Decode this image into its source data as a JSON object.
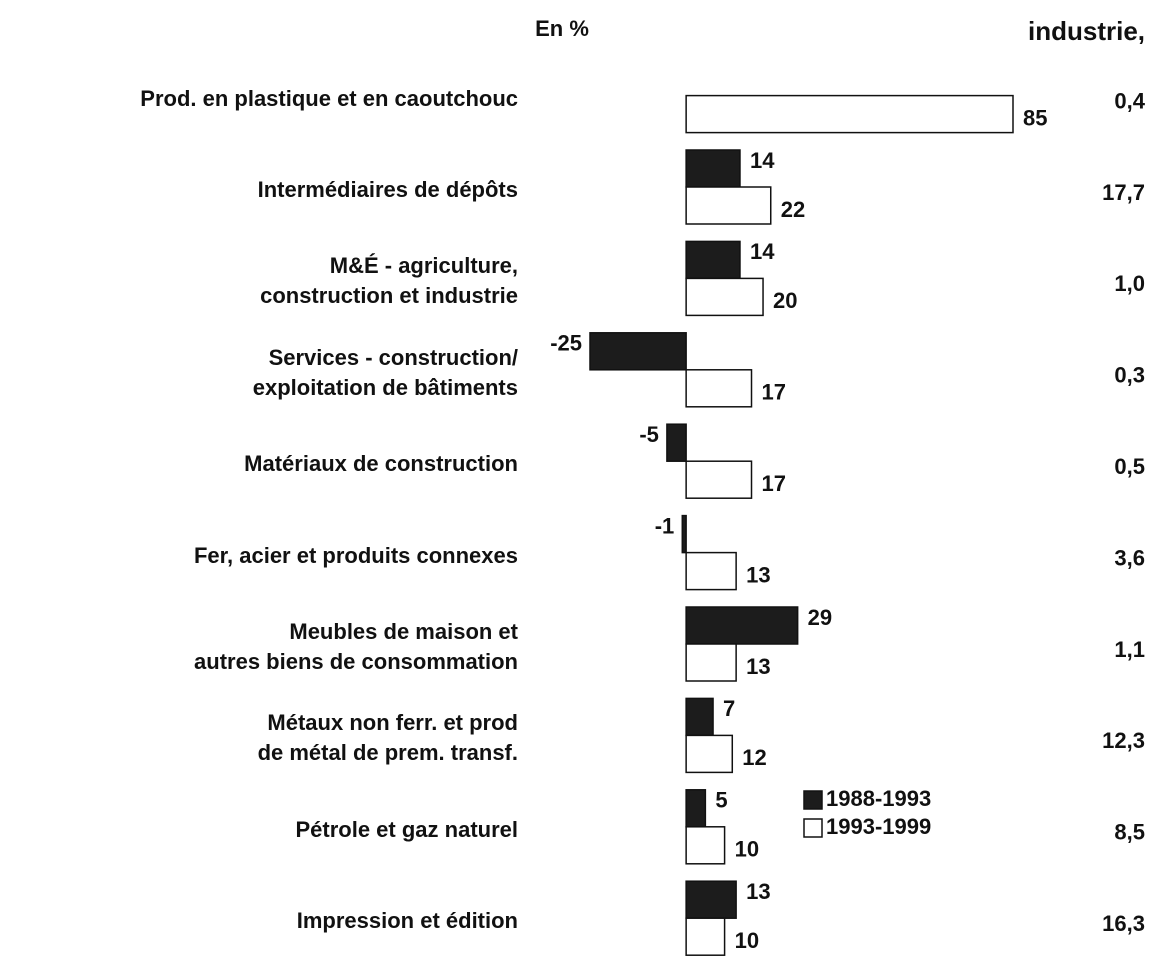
{
  "chart_data": {
    "type": "barh",
    "unit_label": "En %",
    "right_header": "industrie,",
    "categories": [
      "Prod. en plastique et en caoutchouc",
      "Intermédiaires de dépôts",
      "M&É - agriculture,\nconstruction et industrie",
      "Services - construction/\nexploitation de bâtiments",
      "Matériaux de construction",
      "Fer, acier et produits connexes",
      "Meubles de maison et\nautres biens de consommation",
      "Métaux non ferr. et prod\nde métal de prem. transf.",
      "Pétrole et gaz naturel",
      "Impression et édition"
    ],
    "series": [
      {
        "name": "1988-1993",
        "color": "#1c1c1c",
        "values": [
          null,
          14,
          14,
          -25,
          -5,
          -1,
          29,
          7,
          5,
          13
        ]
      },
      {
        "name": "1993-1999",
        "color": "#ffffff",
        "values": [
          85,
          22,
          20,
          17,
          17,
          13,
          13,
          12,
          10,
          10
        ]
      }
    ],
    "right_column": [
      "0,4",
      "17,7",
      "1,0",
      "0,3",
      "0,5",
      "3,6",
      "1,1",
      "12,3",
      "8,5",
      "16,3"
    ],
    "xlim": [
      -25,
      85
    ]
  }
}
